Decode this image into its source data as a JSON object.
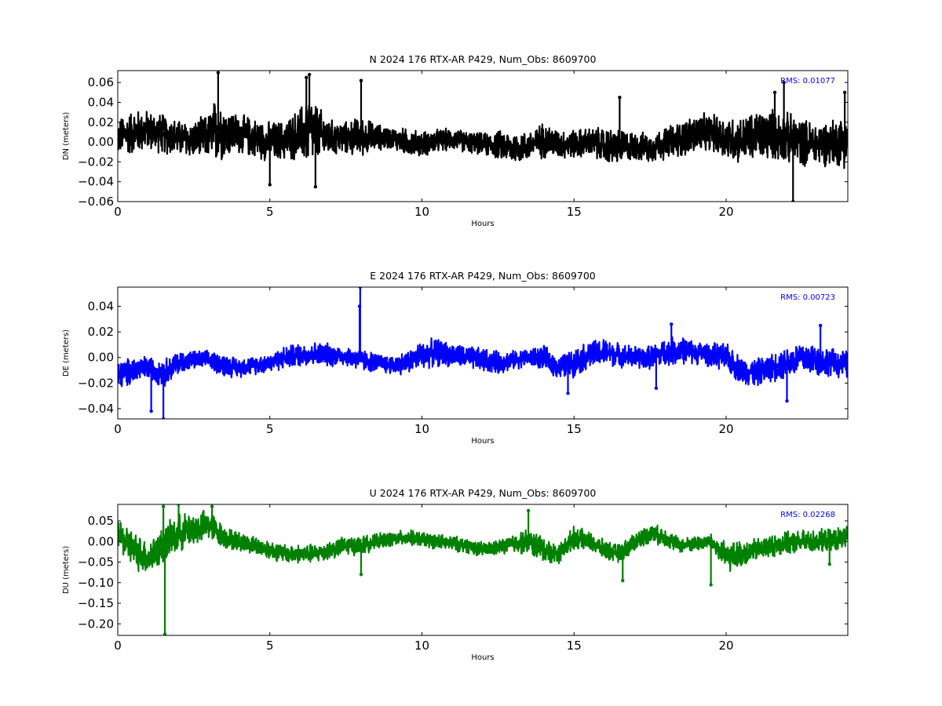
{
  "chart_data": [
    {
      "type": "line",
      "title": "N 2024 176 RTX-AR  P429, Num_Obs: 8609700",
      "xlabel": "Hours",
      "ylabel": "DN (meters)",
      "xlim": [
        0,
        24
      ],
      "ylim": [
        -0.06,
        0.072
      ],
      "xticks": [
        0,
        5,
        10,
        15,
        20
      ],
      "yticks": [
        -0.06,
        -0.04,
        -0.02,
        0.0,
        0.02,
        0.04,
        0.06
      ],
      "ytick_labels": [
        "−0.06",
        "−0.04",
        "−0.02",
        "0.00",
        "0.02",
        "0.04",
        "0.06"
      ],
      "grid": false,
      "annotation": "RMS:  0.01077",
      "annotation_color": "#0000ff",
      "series": [
        {
          "color": "#000000",
          "x": [
            0,
            0.5,
            1,
            1.5,
            2,
            2.5,
            3,
            3.3,
            3.5,
            4,
            4.5,
            5,
            5.5,
            6,
            6.3,
            6.6,
            7,
            7.5,
            8,
            8.5,
            9,
            9.5,
            10,
            10.5,
            11,
            11.5,
            12,
            12.5,
            13,
            13.5,
            14,
            14.5,
            15,
            15.5,
            16,
            16.5,
            17,
            17.5,
            18,
            18.5,
            19,
            19.5,
            20,
            20.5,
            21,
            21.5,
            22,
            22.5,
            23,
            23.5,
            24
          ],
          "y": [
            0.005,
            0.01,
            0.012,
            0.008,
            0.004,
            0.002,
            0.006,
            0.015,
            0.01,
            0.008,
            0.004,
            0.0,
            0.002,
            0.008,
            0.012,
            0.008,
            0.004,
            0.004,
            0.006,
            0.005,
            0.004,
            0.0,
            -0.002,
            0.001,
            0.003,
            0.0,
            -0.002,
            -0.003,
            -0.006,
            -0.004,
            0.002,
            -0.002,
            -0.002,
            0.0,
            -0.004,
            -0.005,
            -0.004,
            -0.006,
            -0.001,
            0.003,
            0.008,
            0.01,
            0.004,
            0.002,
            0.006,
            0.008,
            0.004,
            0.0,
            -0.002,
            0.0,
            0.002
          ],
          "noise_amplitude": [
            0.02,
            0.025,
            0.022,
            0.022,
            0.02,
            0.02,
            0.025,
            0.04,
            0.028,
            0.022,
            0.022,
            0.022,
            0.022,
            0.03,
            0.04,
            0.03,
            0.02,
            0.018,
            0.022,
            0.015,
            0.012,
            0.015,
            0.014,
            0.013,
            0.012,
            0.012,
            0.012,
            0.016,
            0.018,
            0.016,
            0.02,
            0.016,
            0.016,
            0.016,
            0.02,
            0.02,
            0.016,
            0.016,
            0.018,
            0.02,
            0.022,
            0.02,
            0.025,
            0.025,
            0.028,
            0.028,
            0.028,
            0.026,
            0.024,
            0.026,
            0.03
          ],
          "spikes": [
            [
              3.3,
              0.07
            ],
            [
              6.2,
              0.065
            ],
            [
              6.3,
              0.068
            ],
            [
              8.0,
              0.062
            ],
            [
              21.6,
              0.05
            ],
            [
              21.9,
              0.06
            ],
            [
              22.2,
              -0.06
            ],
            [
              16.5,
              0.045
            ],
            [
              23.9,
              0.05
            ],
            [
              5.0,
              -0.043
            ],
            [
              6.5,
              -0.045
            ]
          ]
        }
      ]
    },
    {
      "type": "line",
      "title": "E 2024 176 RTX-AR  P429, Num_Obs: 8609700",
      "xlabel": "Hours",
      "ylabel": "DE (meters)",
      "xlim": [
        0,
        24
      ],
      "ylim": [
        -0.048,
        0.055
      ],
      "xticks": [
        0,
        5,
        10,
        15,
        20
      ],
      "yticks": [
        -0.04,
        -0.02,
        0.0,
        0.02,
        0.04
      ],
      "ytick_labels": [
        "−0.04",
        "−0.02",
        "0.00",
        "0.02",
        "0.04"
      ],
      "grid": false,
      "annotation": "RMS:  0.00723",
      "annotation_color": "#0000ff",
      "series": [
        {
          "color": "#0000ff",
          "x": [
            0,
            0.5,
            1,
            1.5,
            2,
            2.5,
            3,
            3.5,
            4,
            4.5,
            5,
            5.5,
            6,
            6.5,
            7,
            7.5,
            8,
            8.5,
            9,
            9.5,
            10,
            10.5,
            11,
            11.5,
            12,
            12.5,
            13,
            13.5,
            14,
            14.5,
            15,
            15.5,
            16,
            16.5,
            17,
            17.5,
            18,
            18.5,
            19,
            19.5,
            20,
            20.5,
            21,
            21.5,
            22,
            22.5,
            23,
            23.5,
            24
          ],
          "y": [
            -0.015,
            -0.01,
            -0.008,
            -0.012,
            -0.004,
            -0.002,
            -0.002,
            -0.006,
            -0.008,
            -0.006,
            -0.004,
            0.0,
            0.002,
            0.003,
            0.002,
            0.001,
            -0.002,
            -0.004,
            -0.006,
            -0.004,
            0.002,
            0.004,
            0.002,
            0.0,
            -0.002,
            -0.004,
            -0.002,
            0.0,
            0.0,
            -0.008,
            -0.004,
            0.002,
            0.004,
            0.002,
            0.0,
            0.0,
            0.004,
            0.006,
            0.004,
            0.002,
            0.0,
            -0.01,
            -0.012,
            -0.008,
            -0.004,
            0.0,
            -0.002,
            -0.004,
            -0.006
          ],
          "noise_amplitude": [
            0.012,
            0.012,
            0.01,
            0.012,
            0.01,
            0.008,
            0.008,
            0.01,
            0.008,
            0.008,
            0.008,
            0.01,
            0.01,
            0.01,
            0.01,
            0.008,
            0.01,
            0.008,
            0.008,
            0.01,
            0.012,
            0.012,
            0.01,
            0.01,
            0.01,
            0.01,
            0.008,
            0.008,
            0.01,
            0.01,
            0.012,
            0.012,
            0.012,
            0.01,
            0.01,
            0.01,
            0.012,
            0.012,
            0.01,
            0.01,
            0.012,
            0.012,
            0.012,
            0.012,
            0.014,
            0.014,
            0.014,
            0.012,
            0.012
          ],
          "spikes": [
            [
              7.97,
              0.055
            ],
            [
              7.95,
              0.04
            ],
            [
              1.5,
              -0.048
            ],
            [
              1.1,
              -0.042
            ],
            [
              17.7,
              -0.024
            ],
            [
              22.0,
              -0.034
            ],
            [
              14.8,
              -0.028
            ],
            [
              18.2,
              0.026
            ],
            [
              23.1,
              0.025
            ]
          ]
        }
      ]
    },
    {
      "type": "line",
      "title": "U 2024 176 RTX-AR  P429, Num_Obs: 8609700",
      "xlabel": "Hours",
      "ylabel": "DU (meters)",
      "xlim": [
        0,
        24
      ],
      "ylim": [
        -0.228,
        0.09
      ],
      "xticks": [
        0,
        5,
        10,
        15,
        20
      ],
      "yticks": [
        -0.2,
        -0.15,
        -0.1,
        -0.05,
        0.0,
        0.05
      ],
      "ytick_labels": [
        "−0.20",
        "−0.15",
        "−0.10",
        "−0.05",
        "0.00",
        "0.05"
      ],
      "grid": false,
      "annotation": "RMS:  0.02268",
      "annotation_color": "#0000ff",
      "series": [
        {
          "color": "#008000",
          "x": [
            0,
            0.5,
            1,
            1.5,
            2,
            2.5,
            3,
            3.5,
            4,
            4.5,
            5,
            5.5,
            6,
            6.5,
            7,
            7.5,
            8,
            8.5,
            9,
            9.5,
            10,
            10.5,
            11,
            11.5,
            12,
            12.5,
            13,
            13.5,
            14,
            14.5,
            15,
            15.5,
            16,
            16.5,
            17,
            17.5,
            18,
            18.5,
            19,
            19.5,
            20,
            20.5,
            21,
            21.5,
            22,
            22.5,
            23,
            23.5,
            24
          ],
          "y": [
            0.02,
            -0.02,
            -0.04,
            -0.01,
            0.02,
            0.03,
            0.04,
            0.01,
            0.0,
            -0.01,
            -0.02,
            -0.03,
            -0.03,
            -0.03,
            -0.02,
            -0.01,
            -0.01,
            0.0,
            0.005,
            0.01,
            0.005,
            0.0,
            -0.005,
            -0.01,
            -0.02,
            -0.015,
            -0.005,
            0.0,
            -0.02,
            -0.03,
            0.01,
            0.0,
            -0.02,
            -0.03,
            0.0,
            0.02,
            0.01,
            -0.01,
            -0.005,
            0.0,
            -0.04,
            -0.03,
            -0.02,
            -0.01,
            -0.005,
            0.0,
            0.0,
            0.005,
            0.01
          ],
          "noise_amplitude": [
            0.04,
            0.05,
            0.045,
            0.05,
            0.05,
            0.045,
            0.04,
            0.03,
            0.025,
            0.025,
            0.025,
            0.025,
            0.025,
            0.025,
            0.025,
            0.025,
            0.025,
            0.02,
            0.02,
            0.02,
            0.02,
            0.02,
            0.02,
            0.02,
            0.02,
            0.02,
            0.025,
            0.035,
            0.035,
            0.025,
            0.03,
            0.025,
            0.025,
            0.025,
            0.025,
            0.025,
            0.025,
            0.02,
            0.02,
            0.02,
            0.04,
            0.035,
            0.03,
            0.03,
            0.03,
            0.03,
            0.03,
            0.03,
            0.03
          ],
          "spikes": [
            [
              1.55,
              -0.225
            ],
            [
              1.5,
              0.085
            ],
            [
              2.0,
              0.09
            ],
            [
              3.1,
              0.085
            ],
            [
              13.5,
              0.075
            ],
            [
              8.0,
              -0.08
            ],
            [
              16.6,
              -0.095
            ],
            [
              19.5,
              -0.105
            ],
            [
              23.4,
              -0.055
            ]
          ]
        }
      ]
    }
  ]
}
